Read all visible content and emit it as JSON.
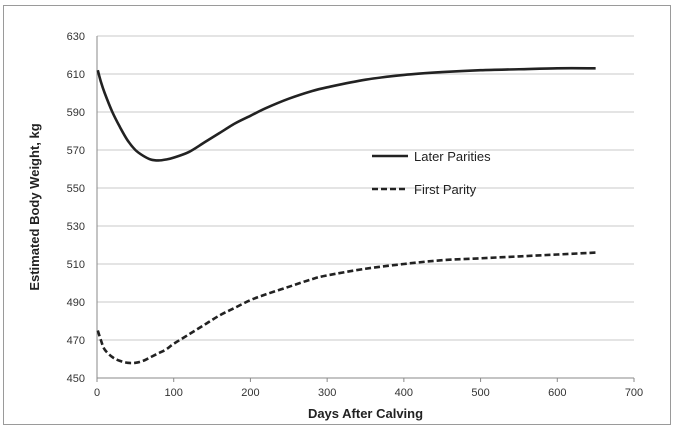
{
  "chart_data": {
    "type": "line",
    "title": "",
    "xlabel": "Days After Calving",
    "ylabel": "Estimated Body Weight, kg",
    "xlim": [
      0,
      700
    ],
    "ylim": [
      450,
      630
    ],
    "xticks": [
      0,
      100,
      200,
      300,
      400,
      500,
      600,
      700
    ],
    "yticks": [
      450,
      470,
      490,
      510,
      530,
      550,
      570,
      590,
      610,
      630
    ],
    "grid": "horizontal",
    "legend_position": "center-right",
    "series": [
      {
        "name": "Later Parities",
        "style": "solid",
        "color": "#222222",
        "points": [
          [
            1,
            612
          ],
          [
            5,
            606
          ],
          [
            10,
            600
          ],
          [
            20,
            590
          ],
          [
            30,
            582
          ],
          [
            40,
            575
          ],
          [
            50,
            570
          ],
          [
            60,
            567
          ],
          [
            70,
            565
          ],
          [
            80,
            564.5
          ],
          [
            90,
            565
          ],
          [
            100,
            566
          ],
          [
            120,
            569
          ],
          [
            140,
            574
          ],
          [
            160,
            579
          ],
          [
            180,
            584
          ],
          [
            200,
            588
          ],
          [
            220,
            592
          ],
          [
            250,
            597
          ],
          [
            280,
            601
          ],
          [
            300,
            603
          ],
          [
            350,
            607
          ],
          [
            400,
            609.5
          ],
          [
            450,
            611
          ],
          [
            500,
            612
          ],
          [
            550,
            612.5
          ],
          [
            600,
            613
          ],
          [
            650,
            613
          ]
        ]
      },
      {
        "name": "First Parity",
        "style": "dashed",
        "color": "#222222",
        "points": [
          [
            1,
            475
          ],
          [
            5,
            470
          ],
          [
            10,
            465
          ],
          [
            20,
            461
          ],
          [
            30,
            459
          ],
          [
            40,
            458
          ],
          [
            50,
            458
          ],
          [
            60,
            459
          ],
          [
            70,
            461
          ],
          [
            80,
            463
          ],
          [
            90,
            465
          ],
          [
            100,
            468
          ],
          [
            120,
            473
          ],
          [
            140,
            478
          ],
          [
            160,
            483
          ],
          [
            180,
            487
          ],
          [
            200,
            491
          ],
          [
            220,
            494
          ],
          [
            250,
            498
          ],
          [
            280,
            502
          ],
          [
            300,
            504
          ],
          [
            350,
            507.5
          ],
          [
            400,
            510
          ],
          [
            450,
            512
          ],
          [
            500,
            513
          ],
          [
            550,
            514
          ],
          [
            600,
            515
          ],
          [
            650,
            516
          ]
        ]
      }
    ]
  }
}
